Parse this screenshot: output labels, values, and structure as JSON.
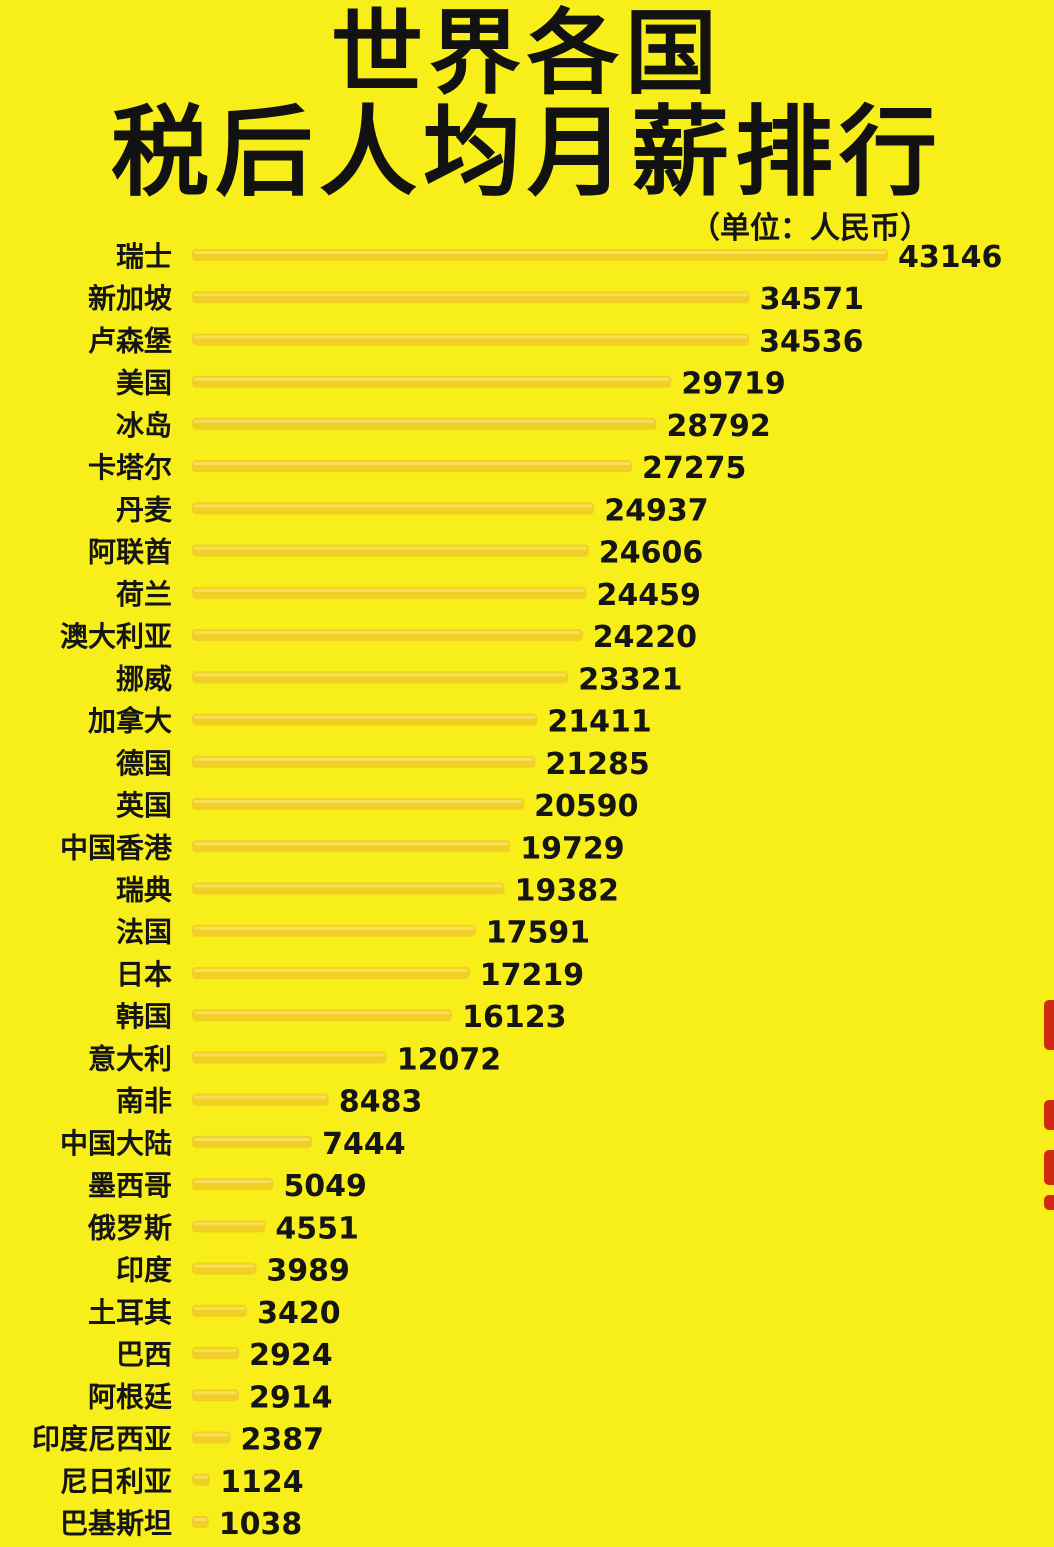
{
  "title": {
    "line1": "世界各国",
    "line2": "税后人均月薪排行",
    "unit": "（单位：人民币）"
  },
  "colors": {
    "background": "#f7ee1a",
    "bar": "#f2cf24",
    "bar_highlight": "#f7df5a",
    "text": "#151515"
  },
  "chart_data": {
    "type": "bar",
    "orientation": "horizontal",
    "title": "世界各国 税后人均月薪排行",
    "unit": "（单位：人民币）",
    "xlabel": "",
    "ylabel": "",
    "grid": false,
    "xlim": [
      0,
      43146
    ],
    "categories": [
      "瑞士",
      "新加坡",
      "卢森堡",
      "美国",
      "冰岛",
      "卡塔尔",
      "丹麦",
      "阿联酋",
      "荷兰",
      "澳大利亚",
      "挪威",
      "加拿大",
      "德国",
      "英国",
      "中国香港",
      "瑞典",
      "法国",
      "日本",
      "韩国",
      "意大利",
      "南非",
      "中国大陆",
      "墨西哥",
      "俄罗斯",
      "印度",
      "土耳其",
      "巴西",
      "阿根廷",
      "印度尼西亚",
      "尼日利亚",
      "巴基斯坦"
    ],
    "values": [
      43146,
      34571,
      34536,
      29719,
      28792,
      27275,
      24937,
      24606,
      24459,
      24220,
      23321,
      21411,
      21285,
      20590,
      19729,
      19382,
      17591,
      17219,
      16123,
      12072,
      8483,
      7444,
      5049,
      4551,
      3989,
      3420,
      2924,
      2914,
      2387,
      1124,
      1038
    ],
    "value_labels": [
      "43146",
      "34571",
      "34536",
      "29719",
      "28792",
      "27275",
      "24937",
      "24606",
      "24459",
      "24220",
      "23321",
      "21411",
      "21285",
      "20590",
      "19729",
      "19382",
      "17591",
      "17219",
      "16123",
      "12072",
      "8483",
      "7444",
      "5049",
      "4551",
      "3989",
      "3420",
      "2924",
      "2914",
      "2387",
      "1124",
      "1038"
    ]
  }
}
